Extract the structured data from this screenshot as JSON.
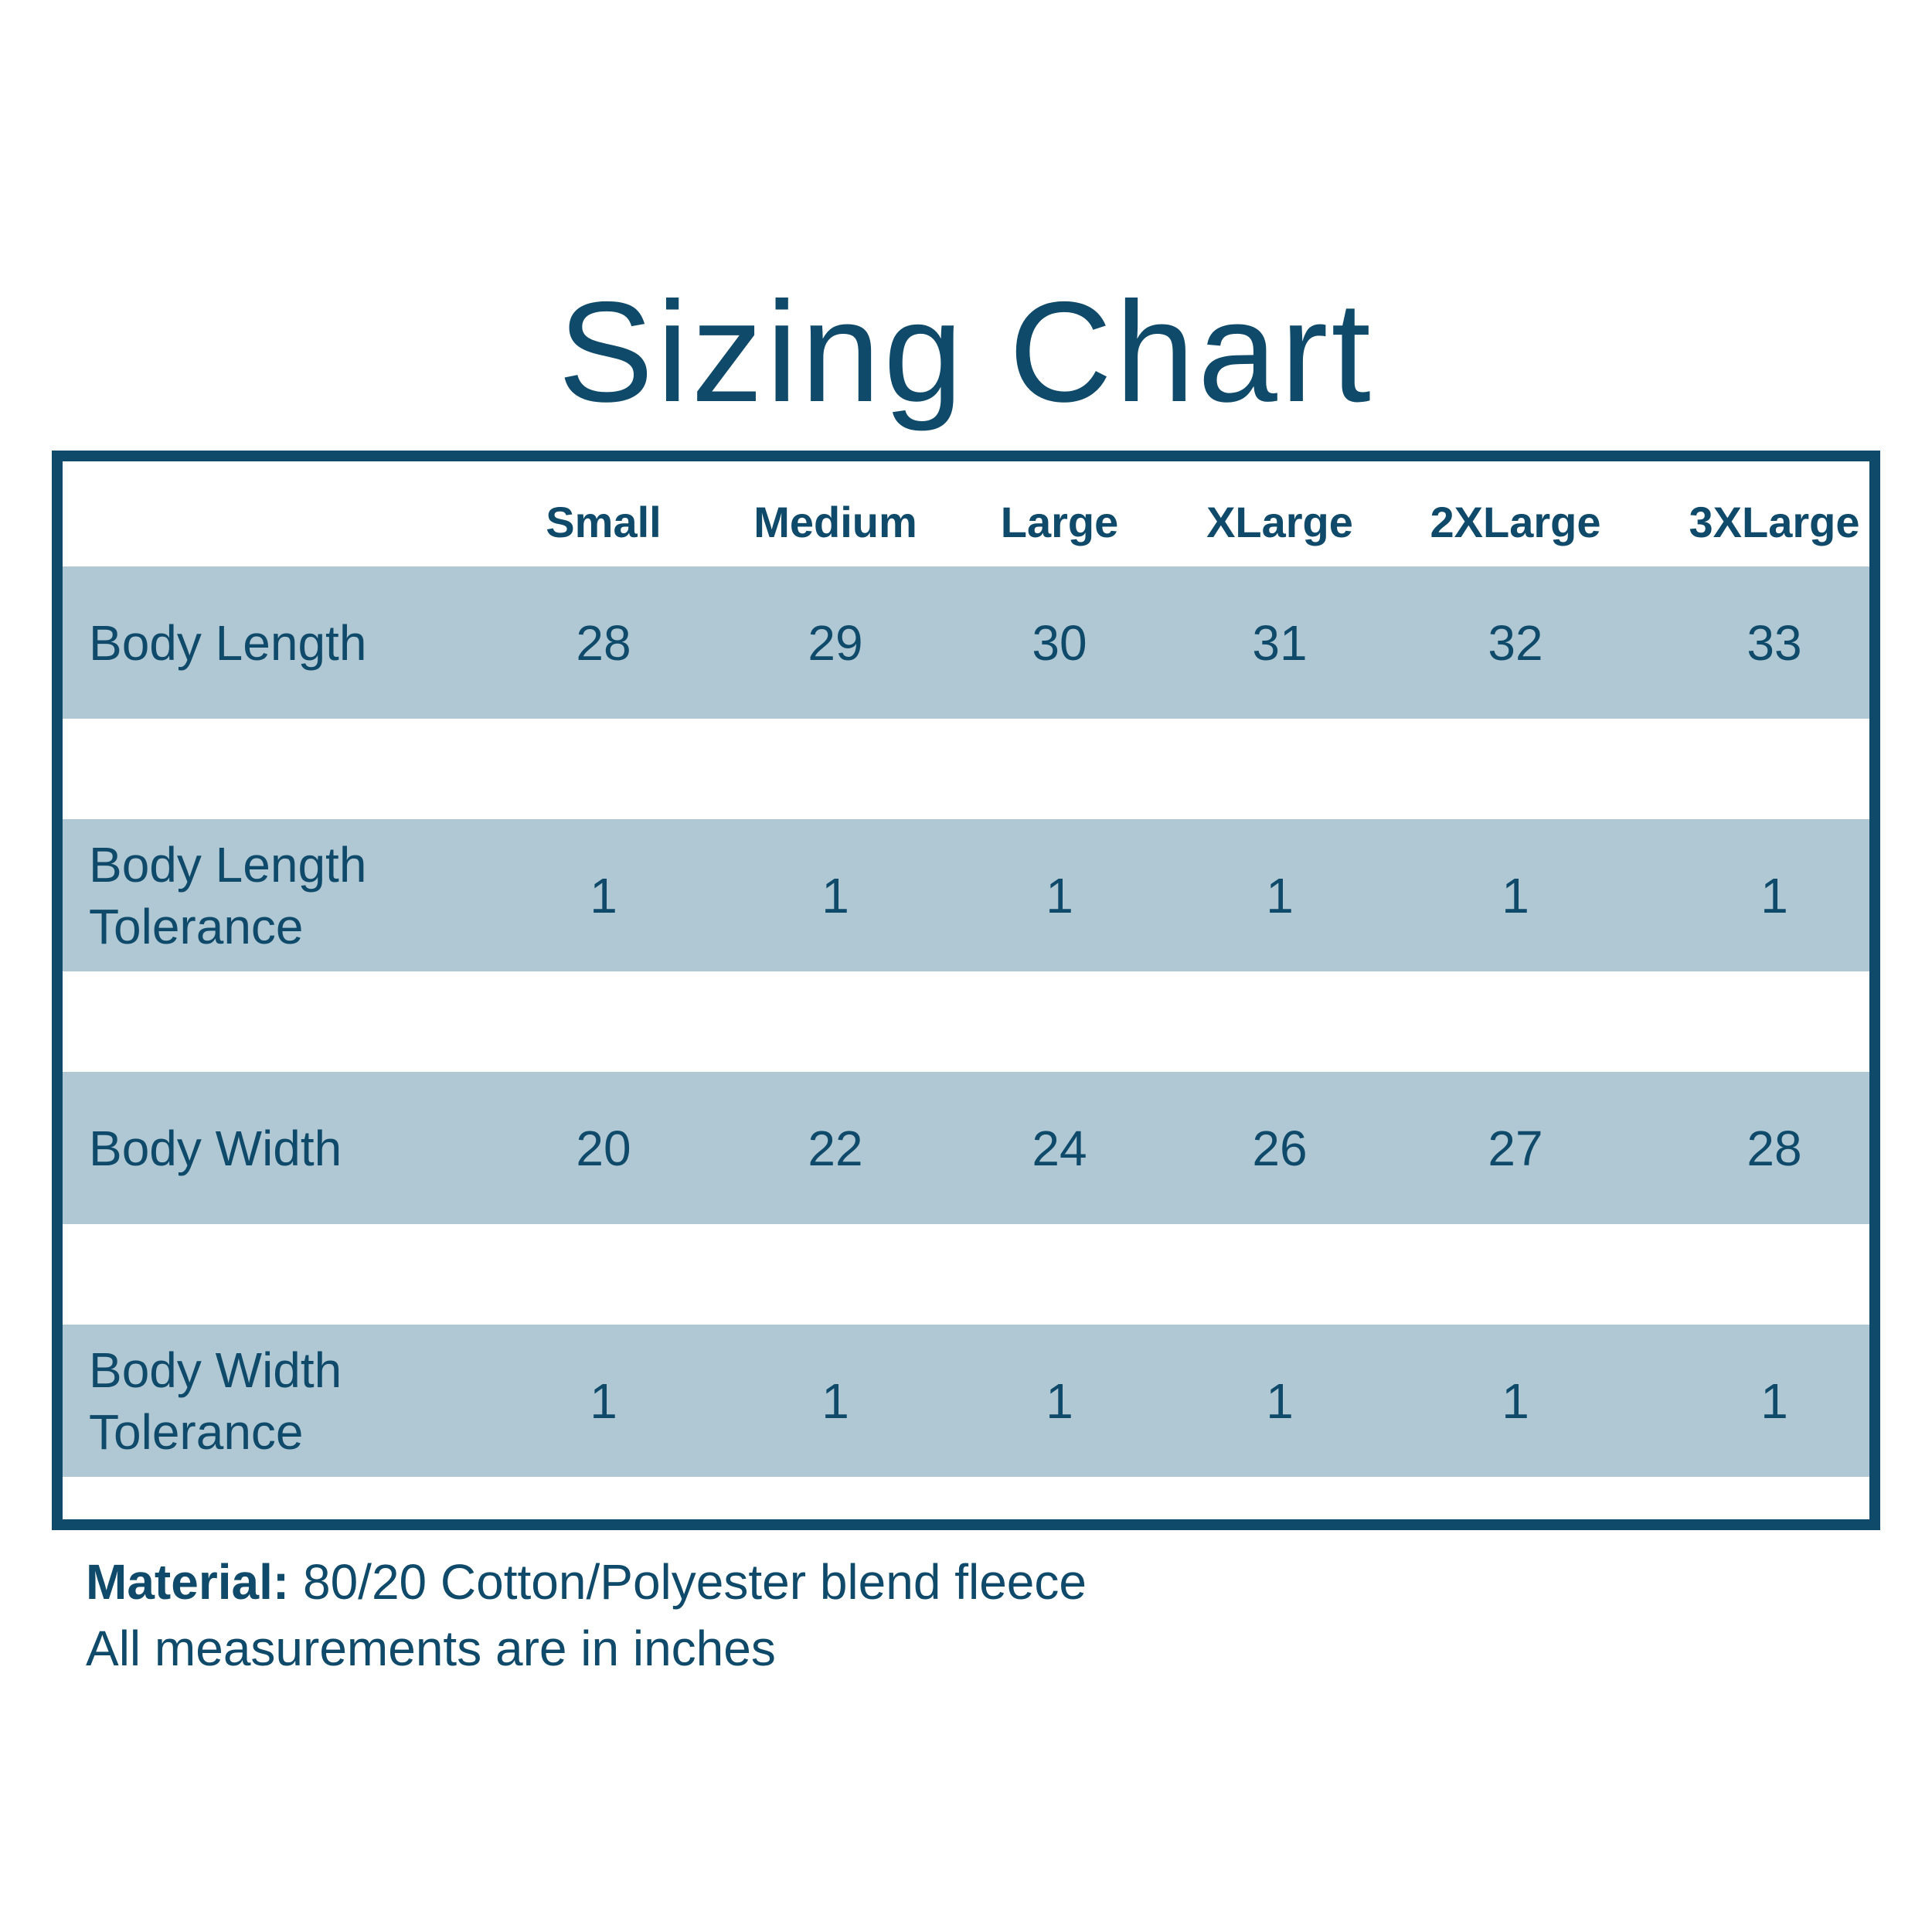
{
  "title": "Sizing Chart",
  "table": {
    "columns": [
      "",
      "Small",
      "Medium",
      "Large",
      "XLarge",
      "2XLarge",
      "3XLarge"
    ],
    "rows": [
      {
        "label": "Body Length",
        "values": [
          "28",
          "29",
          "30",
          "31",
          "32",
          "33"
        ]
      },
      {
        "label": "Body Length\nTolerance",
        "values": [
          "1",
          "1",
          "1",
          "1",
          "1",
          "1"
        ]
      },
      {
        "label": "Body Width",
        "values": [
          "20",
          "22",
          "24",
          "26",
          "27",
          "28"
        ]
      },
      {
        "label": "Body Width\nTolerance",
        "values": [
          "1",
          "1",
          "1",
          "1",
          "1",
          "1"
        ]
      }
    ]
  },
  "notes": {
    "material_label": "Material:",
    "material_value": " 80/20 Cotton/Polyester blend fleece",
    "units_note": "All measurements are in inches"
  },
  "colors": {
    "primary": "#0f4a6b",
    "band": "#afc8d3",
    "background": "#ffffff"
  }
}
